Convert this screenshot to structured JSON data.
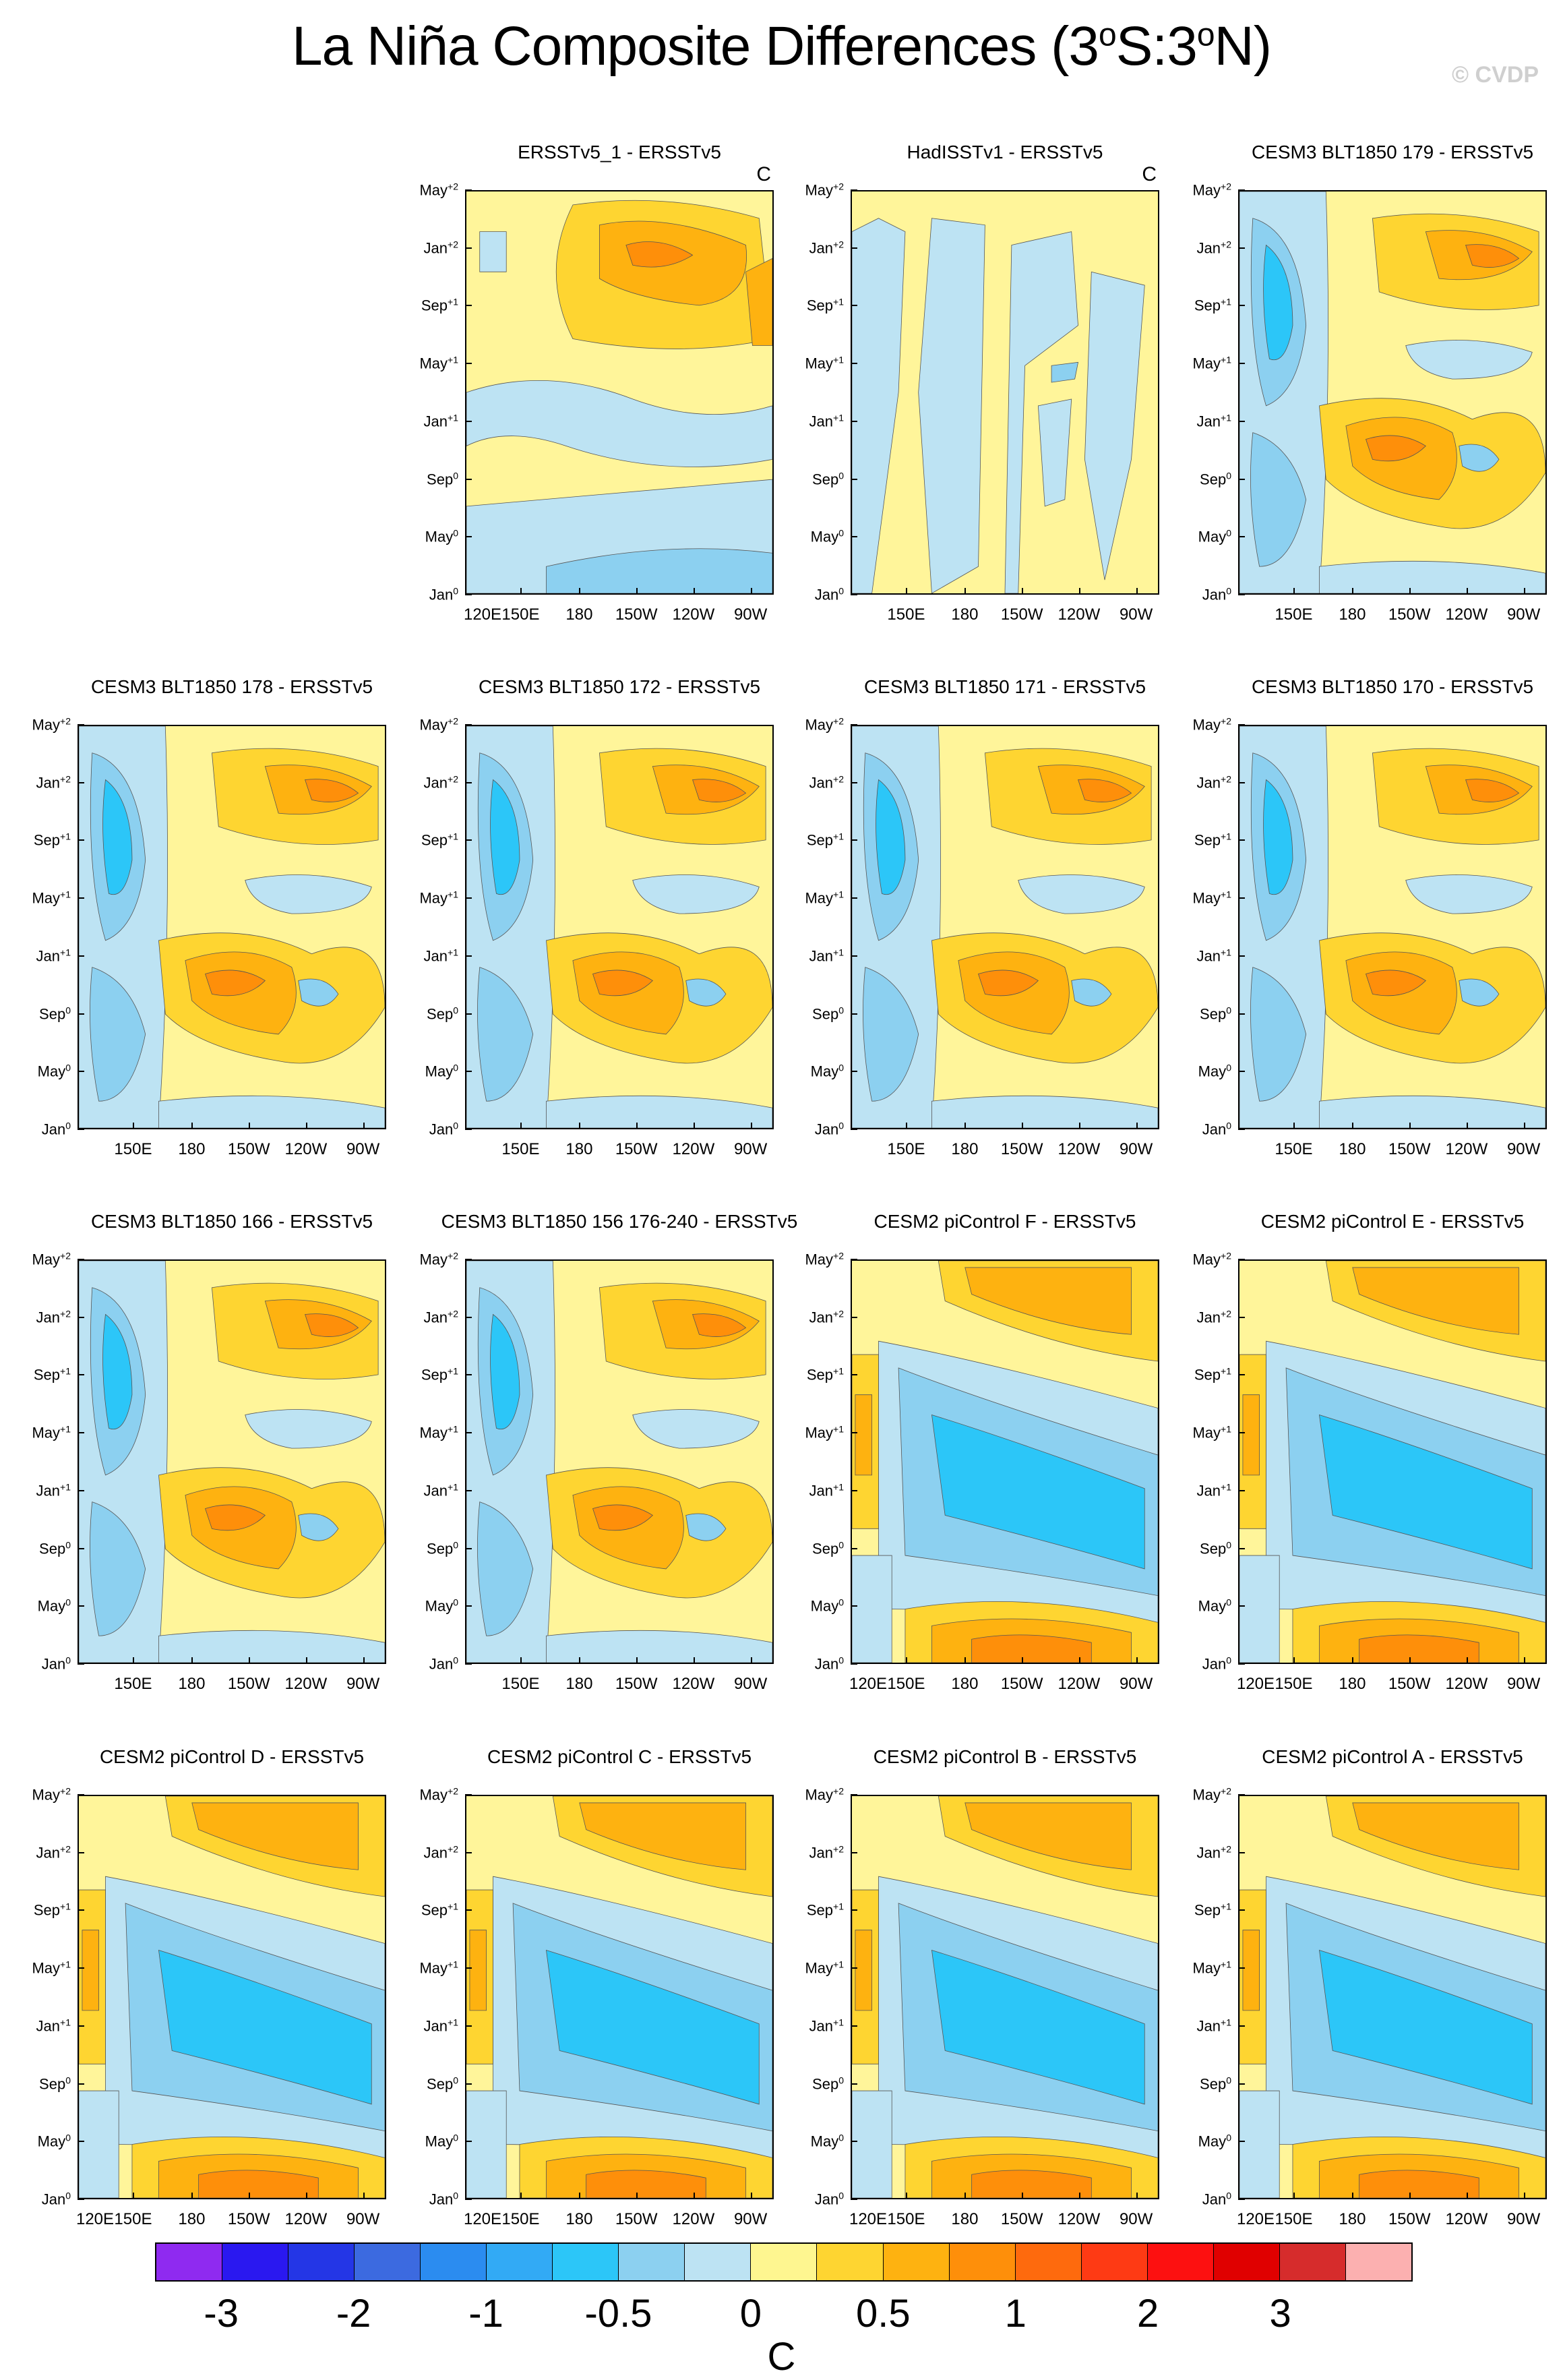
{
  "title": {
    "main": "La Niña Composite Differences (3",
    "sup1": "o",
    "mid": "S:3",
    "sup2": "o",
    "end": "N)"
  },
  "watermark": "© CVDP",
  "units": "C",
  "y_ticks": [
    {
      "label": "Jan",
      "sup": "0"
    },
    {
      "label": "May",
      "sup": "0"
    },
    {
      "label": "Sep",
      "sup": "0"
    },
    {
      "label": "Jan",
      "sup": "+1"
    },
    {
      "label": "May",
      "sup": "+1"
    },
    {
      "label": "Sep",
      "sup": "+1"
    },
    {
      "label": "Jan",
      "sup": "+2"
    },
    {
      "label": "May",
      "sup": "+2"
    }
  ],
  "x_ticks": [
    "120E",
    "150E",
    "180",
    "150W",
    "120W",
    "90W"
  ],
  "colorbar": {
    "colors": [
      "#8f2af0",
      "#2a18f0",
      "#2436e6",
      "#3c6ae0",
      "#2b8cf0",
      "#32aaf5",
      "#2cc6f8",
      "#8cd0f0",
      "#bde3f3",
      "#fef690",
      "#fed531",
      "#feb210",
      "#fe8f0a",
      "#fe6a0d",
      "#fe3a14",
      "#fd1010",
      "#e00000",
      "#d62c2c",
      "#fcb0b0"
    ],
    "labels": [
      "-3",
      "-2",
      "-1",
      "-0.5",
      "0",
      "0.5",
      "1",
      "2",
      "3"
    ]
  },
  "chart_data": [
    {
      "type": "heatmap",
      "title": "ERSSTv5_1 - ERSSTv5",
      "show_units": true,
      "xticks": [
        "120E",
        "150E",
        "180",
        "150W",
        "120W",
        "90W"
      ],
      "variant": "obs1"
    },
    {
      "type": "heatmap",
      "title": "HadISSTv1 - ERSSTv5",
      "show_units": true,
      "xticks": [
        "150E",
        "180",
        "150W",
        "120W",
        "90W"
      ],
      "variant": "obs2"
    },
    {
      "type": "heatmap",
      "title": "CESM3 BLT1850 179 - ERSSTv5",
      "show_units": false,
      "xticks": [
        "150E",
        "180",
        "150W",
        "120W",
        "90W"
      ],
      "variant": "blt"
    },
    {
      "type": "heatmap",
      "title": "CESM3 BLT1850 178 - ERSSTv5",
      "show_units": false,
      "xticks": [
        "150E",
        "180",
        "150W",
        "120W",
        "90W"
      ],
      "variant": "blt"
    },
    {
      "type": "heatmap",
      "title": "CESM3 BLT1850 172 - ERSSTv5",
      "show_units": false,
      "xticks": [
        "150E",
        "180",
        "150W",
        "120W",
        "90W"
      ],
      "variant": "blt"
    },
    {
      "type": "heatmap",
      "title": "CESM3 BLT1850 171 - ERSSTv5",
      "show_units": false,
      "xticks": [
        "150E",
        "180",
        "150W",
        "120W",
        "90W"
      ],
      "variant": "blt"
    },
    {
      "type": "heatmap",
      "title": "CESM3 BLT1850 170 - ERSSTv5",
      "show_units": false,
      "xticks": [
        "150E",
        "180",
        "150W",
        "120W",
        "90W"
      ],
      "variant": "blt"
    },
    {
      "type": "heatmap",
      "title": "CESM3 BLT1850 166 - ERSSTv5",
      "show_units": false,
      "xticks": [
        "150E",
        "180",
        "150W",
        "120W",
        "90W"
      ],
      "variant": "blt"
    },
    {
      "type": "heatmap",
      "title": "CESM3 BLT1850 156 176-240 - ERSSTv5",
      "show_units": false,
      "xticks": [
        "150E",
        "180",
        "150W",
        "120W",
        "90W"
      ],
      "variant": "blt"
    },
    {
      "type": "heatmap",
      "title": "CESM2 piControl F - ERSSTv5",
      "show_units": false,
      "xticks": [
        "120E",
        "150E",
        "180",
        "150W",
        "120W",
        "90W"
      ],
      "variant": "cesm2"
    },
    {
      "type": "heatmap",
      "title": "CESM2 piControl E - ERSSTv5",
      "show_units": false,
      "xticks": [
        "120E",
        "150E",
        "180",
        "150W",
        "120W",
        "90W"
      ],
      "variant": "cesm2"
    },
    {
      "type": "heatmap",
      "title": "CESM2 piControl D - ERSSTv5",
      "show_units": false,
      "xticks": [
        "120E",
        "150E",
        "180",
        "150W",
        "120W",
        "90W"
      ],
      "variant": "cesm2"
    },
    {
      "type": "heatmap",
      "title": "CESM2 piControl C - ERSSTv5",
      "show_units": false,
      "xticks": [
        "120E",
        "150E",
        "180",
        "150W",
        "120W",
        "90W"
      ],
      "variant": "cesm2"
    },
    {
      "type": "heatmap",
      "title": "CESM2 piControl B - ERSSTv5",
      "show_units": false,
      "xticks": [
        "120E",
        "150E",
        "180",
        "150W",
        "120W",
        "90W"
      ],
      "variant": "cesm2"
    },
    {
      "type": "heatmap",
      "title": "CESM2 piControl A - ERSSTv5",
      "show_units": false,
      "xticks": [
        "120E",
        "150E",
        "180",
        "150W",
        "120W",
        "90W"
      ],
      "variant": "cesm2"
    }
  ]
}
